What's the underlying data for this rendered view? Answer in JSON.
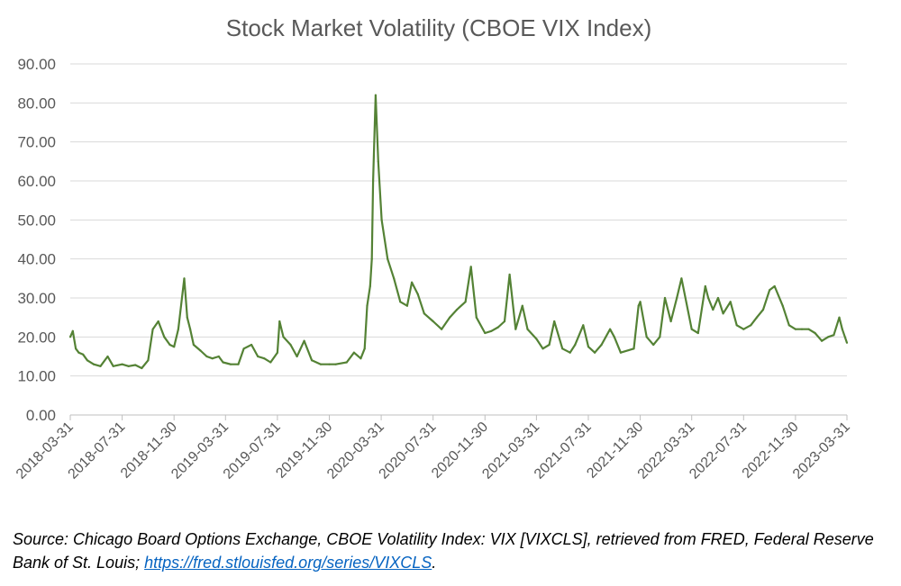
{
  "colors": {
    "series": "#548235",
    "text": "#595959",
    "grid": "#d9d9d9",
    "link": "#0563c1"
  },
  "source": {
    "text": "Source: Chicago Board Options Exchange, CBOE Volatility Index: VIX [VIXCLS], retrieved from FRED, Federal Reserve Bank of St. Louis; ",
    "link_text": "https://fred.stlouisfed.org/series/VIXCLS",
    "suffix": "."
  },
  "chart_data": {
    "type": "line",
    "title": "Stock Market Volatility (CBOE VIX Index)",
    "xlabel": "",
    "ylabel": "",
    "grid": true,
    "legend": "none",
    "ylim": [
      0,
      90
    ],
    "yticks": [
      "0.00",
      "10.00",
      "20.00",
      "30.00",
      "40.00",
      "50.00",
      "60.00",
      "70.00",
      "80.00",
      "90.00"
    ],
    "xlim": [
      "2018-03-31",
      "2023-03-31"
    ],
    "xticks": [
      "2018-03-31",
      "2018-07-31",
      "2018-11-30",
      "2019-03-31",
      "2019-07-31",
      "2019-11-30",
      "2020-03-31",
      "2020-07-31",
      "2020-11-30",
      "2021-03-31",
      "2021-07-31",
      "2021-11-30",
      "2022-03-31",
      "2022-07-31",
      "2022-11-30",
      "2023-03-31"
    ],
    "series": [
      {
        "x": [
          "2018-03-31",
          "2018-04-06",
          "2018-04-13",
          "2018-04-20",
          "2018-04-30",
          "2018-05-10",
          "2018-05-25",
          "2018-06-10",
          "2018-06-27",
          "2018-07-10",
          "2018-07-31",
          "2018-08-15",
          "2018-08-31",
          "2018-09-15",
          "2018-09-30",
          "2018-10-11",
          "2018-10-24",
          "2018-11-07",
          "2018-11-20",
          "2018-11-30",
          "2018-12-10",
          "2018-12-24",
          "2018-12-31",
          "2019-01-07",
          "2019-01-15",
          "2019-01-31",
          "2019-02-15",
          "2019-02-28",
          "2019-03-15",
          "2019-03-25",
          "2019-04-12",
          "2019-04-30",
          "2019-05-13",
          "2019-05-31",
          "2019-06-15",
          "2019-06-30",
          "2019-07-15",
          "2019-07-31",
          "2019-08-05",
          "2019-08-14",
          "2019-08-31",
          "2019-09-15",
          "2019-10-02",
          "2019-10-20",
          "2019-11-10",
          "2019-11-30",
          "2019-12-15",
          "2020-01-10",
          "2020-01-27",
          "2020-02-12",
          "2020-02-21",
          "2020-02-27",
          "2020-03-05",
          "2020-03-09",
          "2020-03-12",
          "2020-03-16",
          "2020-03-18",
          "2020-03-24",
          "2020-04-01",
          "2020-04-15",
          "2020-04-30",
          "2020-05-15",
          "2020-05-31",
          "2020-06-11",
          "2020-06-25",
          "2020-07-10",
          "2020-07-31",
          "2020-08-20",
          "2020-09-08",
          "2020-09-25",
          "2020-10-15",
          "2020-10-28",
          "2020-11-10",
          "2020-11-30",
          "2020-12-15",
          "2020-12-31",
          "2021-01-15",
          "2021-01-27",
          "2021-02-10",
          "2021-02-26",
          "2021-03-10",
          "2021-03-31",
          "2021-04-15",
          "2021-04-30",
          "2021-05-12",
          "2021-05-31",
          "2021-06-18",
          "2021-06-30",
          "2021-07-19",
          "2021-07-31",
          "2021-08-15",
          "2021-08-31",
          "2021-09-20",
          "2021-09-30",
          "2021-10-15",
          "2021-11-15",
          "2021-11-26",
          "2021-11-30",
          "2021-12-15",
          "2021-12-31",
          "2022-01-15",
          "2022-01-27",
          "2022-02-10",
          "2022-02-24",
          "2022-03-07",
          "2022-03-31",
          "2022-04-15",
          "2022-05-02",
          "2022-05-09",
          "2022-05-20",
          "2022-06-01",
          "2022-06-13",
          "2022-06-30",
          "2022-07-15",
          "2022-07-31",
          "2022-08-17",
          "2022-08-31",
          "2022-09-15",
          "2022-09-30",
          "2022-10-12",
          "2022-10-31",
          "2022-11-15",
          "2022-11-30",
          "2022-12-15",
          "2022-12-31",
          "2023-01-15",
          "2023-01-31",
          "2023-02-15",
          "2023-02-28",
          "2023-03-13",
          "2023-03-20",
          "2023-03-31"
        ],
        "values": [
          20,
          21.5,
          17,
          16,
          15.5,
          14,
          13,
          12.5,
          15,
          12.5,
          13,
          12.5,
          12.8,
          12,
          14,
          22,
          24,
          20,
          18,
          17.5,
          22,
          35,
          25,
          22,
          18,
          16.5,
          15,
          14.5,
          15,
          13.5,
          13,
          13,
          17,
          18,
          15,
          14.5,
          13.5,
          16,
          24,
          20,
          18,
          15,
          19,
          14,
          13,
          13,
          13,
          13.5,
          16,
          14.5,
          17,
          28,
          33,
          40,
          60,
          75,
          82,
          65,
          50,
          40,
          35,
          29,
          28,
          34,
          31,
          26,
          24,
          22,
          25,
          27,
          29,
          38,
          25,
          21,
          21.5,
          22.5,
          24,
          36,
          22,
          28,
          22,
          19.5,
          17,
          18,
          24,
          17,
          16,
          18,
          23,
          17.5,
          16,
          18,
          22,
          20,
          16,
          17,
          28,
          29,
          20,
          18,
          20,
          30,
          24,
          30,
          35,
          22,
          21,
          33,
          30,
          27,
          30,
          26,
          29,
          23,
          22,
          23,
          25,
          27,
          32,
          33,
          28,
          23,
          22,
          22,
          22,
          21,
          19,
          20,
          20.5,
          25,
          22,
          18.5
        ]
      }
    ]
  }
}
